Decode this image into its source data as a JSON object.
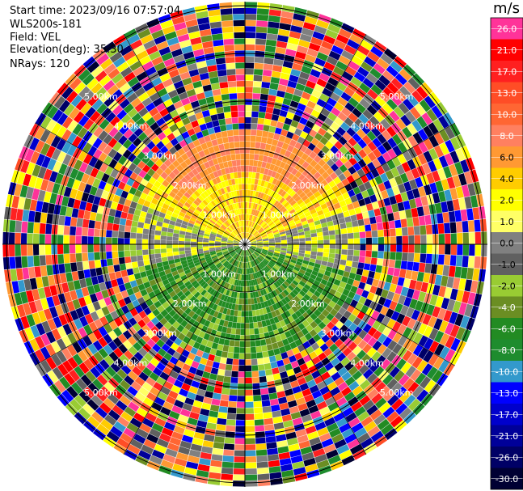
{
  "header": {
    "start_time": "Start time: 2023/09/16 07:57:04",
    "instrument": "WLS200s-181",
    "field": "Field: VEL",
    "elevation": "Elevation(deg): 35.30",
    "nrays": "NRays: 120"
  },
  "colorbar": {
    "unit": "m/s",
    "ticks": [
      "26.0",
      "21.0",
      "17.0",
      "13.0",
      "10.0",
      "8.0",
      "6.0",
      "4.0",
      "2.0",
      "1.0",
      "0.0",
      "-1.0",
      "-2.0",
      "-4.0",
      "-6.0",
      "-8.0",
      "-10.0",
      "-13.0",
      "-17.0",
      "-21.0",
      "-26.0",
      "-30.0"
    ],
    "colors": [
      "#ff3399",
      "#ff0000",
      "#ff2020",
      "#ff4d26",
      "#ff6633",
      "#ff8060",
      "#ff9933",
      "#ffcc00",
      "#ffff00",
      "#ffff66",
      "#808080",
      "#606060",
      "#99cc33",
      "#6b8e23",
      "#228b22",
      "#1e8c2e",
      "#3399cc",
      "#0000ff",
      "#0000cc",
      "#000099",
      "#000066",
      "#000033"
    ]
  },
  "chart_data": {
    "type": "heatmap",
    "title": "",
    "center_label": "",
    "range_rings": [
      {
        "label": "1.00km"
      },
      {
        "label": "2.00km"
      },
      {
        "label": "3.00km"
      },
      {
        "label": "4.00km"
      },
      {
        "label": "5.00km"
      }
    ],
    "n_rays": 120,
    "pattern": {
      "inner_zone": "yellow/orange (positive) to the north, green (negative) to the south, grey near zero along east/west",
      "outer_zone": "noisy multicolor beyond about 2.5-3km"
    }
  }
}
